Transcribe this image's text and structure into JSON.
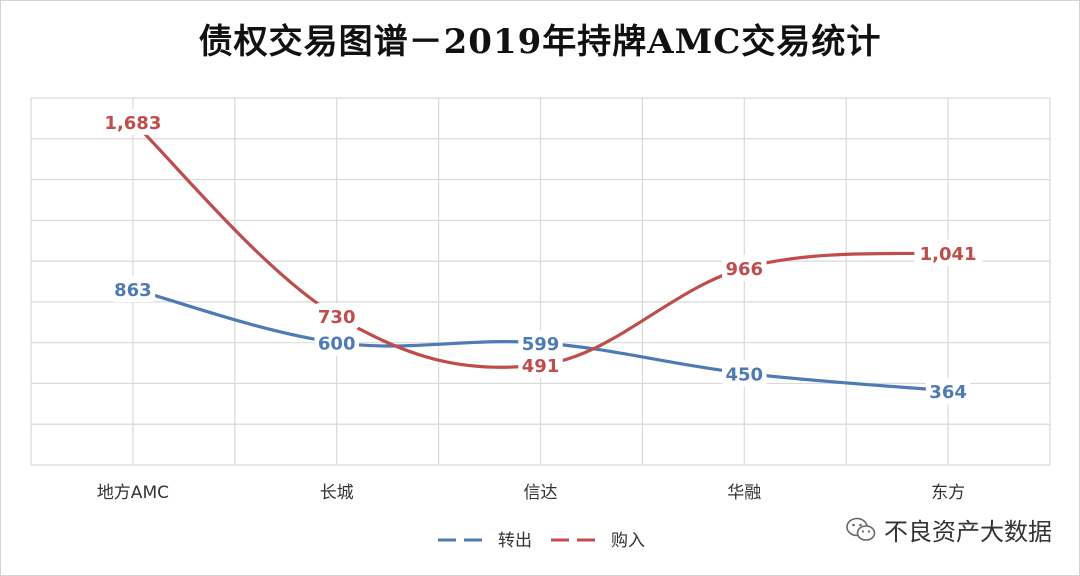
{
  "watermark": {
    "text": "不良资产大数据",
    "icon": "wechat-icon"
  },
  "chart_data": {
    "type": "line",
    "title": "债权交易图谱－2019年持牌AMC交易统计",
    "categories": [
      "地方AMC",
      "长城",
      "信达",
      "华融",
      "东方"
    ],
    "series": [
      {
        "name": "转出",
        "color": "#4f7bb4",
        "values": [
          863,
          600,
          599,
          450,
          364
        ],
        "labels": [
          "863",
          "600",
          "599",
          "450",
          "364"
        ]
      },
      {
        "name": "购入",
        "color": "#bf4d4b",
        "values": [
          1683,
          730,
          491,
          966,
          1041
        ],
        "labels": [
          "1,683",
          "730",
          "491",
          "966",
          "1,041"
        ]
      }
    ],
    "ylim": [
      0,
      1800
    ],
    "gridlines": {
      "horizontal": true,
      "vertical": true
    },
    "smooth": true,
    "y_axis_labels_visible": false,
    "legend_position": "bottom-center",
    "legend_style": "dashed-lines"
  }
}
